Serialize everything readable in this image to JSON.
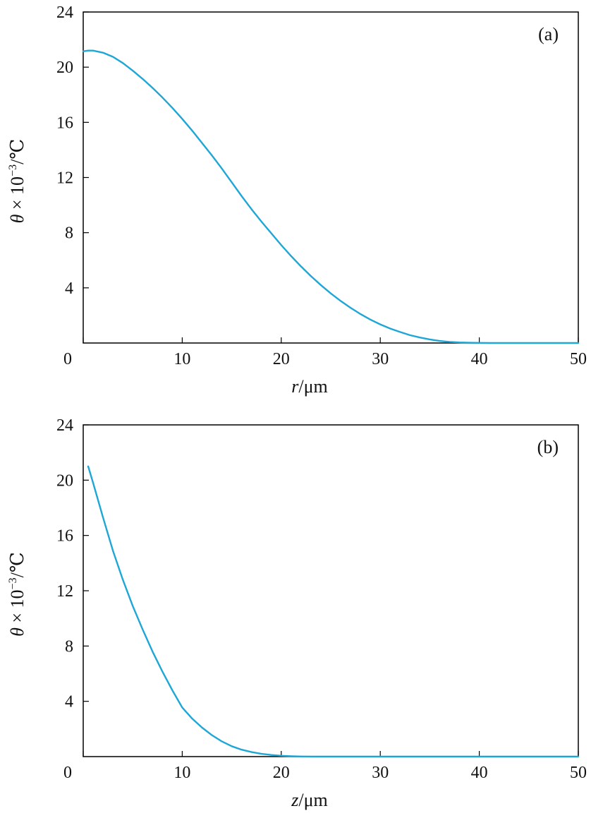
{
  "chart_data": [
    {
      "type": "line",
      "panel_label": "(a)",
      "xlabel": {
        "var": "r",
        "unit": "/μm"
      },
      "ylabel": {
        "var": "θ",
        "rest": " × 10",
        "exp": "−3",
        "unit": "/℃"
      },
      "xlim": [
        0,
        50
      ],
      "ylim": [
        0,
        24
      ],
      "xticks": [
        0,
        10,
        20,
        30,
        40,
        50
      ],
      "yticks": [
        0,
        4,
        8,
        12,
        16,
        20,
        24
      ],
      "grid": false,
      "line_color": "#1ea7d6",
      "series": [
        {
          "x": [
            0,
            0.5,
            1,
            2,
            3,
            4,
            5,
            6,
            7,
            8,
            9,
            10,
            11,
            12,
            13,
            14,
            15,
            16,
            17,
            18,
            19,
            20,
            21,
            22,
            23,
            24,
            25,
            26,
            27,
            28,
            29,
            30,
            31,
            32,
            33,
            34,
            35,
            36,
            37,
            38,
            39,
            40,
            41,
            42,
            43,
            44,
            45,
            46,
            47,
            48,
            49,
            50
          ],
          "y": [
            21.15,
            21.2,
            21.2,
            21.05,
            20.75,
            20.3,
            19.75,
            19.15,
            18.5,
            17.8,
            17.05,
            16.25,
            15.4,
            14.5,
            13.6,
            12.65,
            11.65,
            10.65,
            9.7,
            8.8,
            7.95,
            7.1,
            6.3,
            5.55,
            4.85,
            4.2,
            3.6,
            3.05,
            2.55,
            2.1,
            1.7,
            1.35,
            1.05,
            0.8,
            0.57,
            0.4,
            0.26,
            0.15,
            0.08,
            0.04,
            0.02,
            0.01,
            0.0,
            0.0,
            0.0,
            0.0,
            0.0,
            0.0,
            0.0,
            0.0,
            0.0,
            0.0
          ]
        }
      ]
    },
    {
      "type": "line",
      "panel_label": "(b)",
      "xlabel": {
        "var": "z",
        "unit": "/μm"
      },
      "ylabel": {
        "var": "θ",
        "rest": " × 10",
        "exp": "−3",
        "unit": "/℃"
      },
      "xlim": [
        0,
        50
      ],
      "ylim": [
        0,
        24
      ],
      "xticks": [
        0,
        10,
        20,
        30,
        40,
        50
      ],
      "yticks": [
        0,
        4,
        8,
        12,
        16,
        20,
        24
      ],
      "grid": false,
      "line_color": "#1ea7d6",
      "series": [
        {
          "x": [
            0.5,
            1,
            2,
            3,
            4,
            5,
            6,
            7,
            8,
            9,
            10,
            11,
            12,
            13,
            14,
            15,
            16,
            17,
            18,
            19,
            20,
            21,
            22,
            23,
            24,
            25,
            26,
            28,
            30,
            35,
            40,
            45,
            50
          ],
          "y": [
            21.0,
            19.8,
            17.3,
            14.9,
            12.8,
            10.9,
            9.2,
            7.6,
            6.15,
            4.8,
            3.55,
            2.75,
            2.1,
            1.55,
            1.1,
            0.75,
            0.5,
            0.33,
            0.2,
            0.12,
            0.06,
            0.03,
            0.01,
            0.0,
            0.0,
            0.0,
            0.0,
            0.0,
            0.0,
            0.0,
            0.0,
            0.0,
            0.0
          ]
        }
      ]
    }
  ]
}
